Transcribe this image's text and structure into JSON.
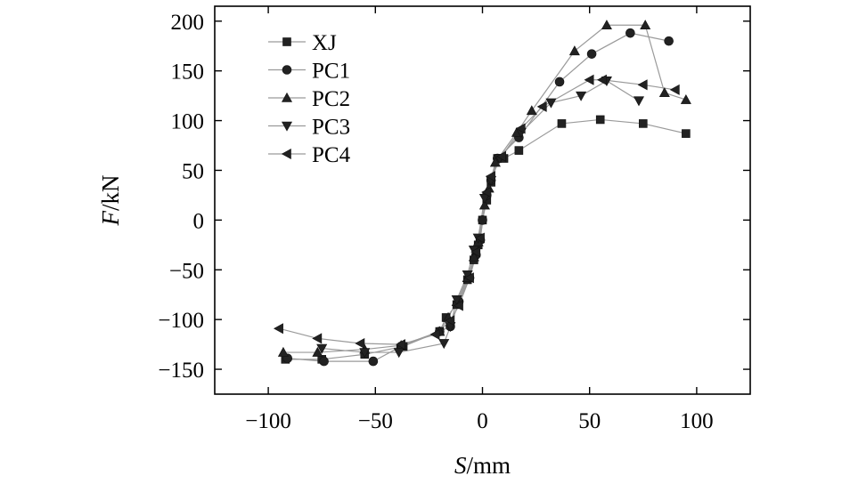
{
  "chart_data": {
    "type": "line",
    "title": "",
    "xlabel_italic": "S",
    "xlabel_unit": "/mm",
    "ylabel_italic": "F",
    "ylabel_unit": "/kN",
    "xlim": [
      -125,
      125
    ],
    "ylim": [
      -175,
      215
    ],
    "xticks": [
      -100,
      -50,
      0,
      50,
      100
    ],
    "yticks": [
      -150,
      -100,
      -50,
      0,
      50,
      100,
      150,
      200
    ],
    "grid": false,
    "legend_position": "top-left",
    "series": [
      {
        "name": "XJ",
        "marker": "square",
        "points": [
          [
            -92,
            -140
          ],
          [
            -75,
            -140
          ],
          [
            -55,
            -135
          ],
          [
            -37,
            -127
          ],
          [
            -20,
            -112
          ],
          [
            -17,
            -98
          ],
          [
            -12,
            -85
          ],
          [
            -7,
            -60
          ],
          [
            -4,
            -40
          ],
          [
            -2,
            -25
          ],
          [
            0,
            0
          ],
          [
            2,
            20
          ],
          [
            4,
            38
          ],
          [
            7,
            62
          ],
          [
            10,
            62
          ],
          [
            17,
            70
          ],
          [
            37,
            97
          ],
          [
            55,
            101
          ],
          [
            75,
            97
          ],
          [
            95,
            87
          ]
        ]
      },
      {
        "name": "PC1",
        "marker": "circle",
        "points": [
          [
            -91,
            -139
          ],
          [
            -74,
            -142
          ],
          [
            -51,
            -142
          ],
          [
            -38,
            -127
          ],
          [
            -20,
            -112
          ],
          [
            -15,
            -107
          ],
          [
            -11,
            -82
          ],
          [
            -6,
            -58
          ],
          [
            -3,
            -35
          ],
          [
            -1,
            -20
          ],
          [
            0,
            0
          ],
          [
            2,
            25
          ],
          [
            4,
            40
          ],
          [
            7,
            62
          ],
          [
            17,
            83
          ],
          [
            36,
            139
          ],
          [
            51,
            167
          ],
          [
            69,
            188
          ],
          [
            87,
            180
          ]
        ]
      },
      {
        "name": "PC2",
        "marker": "triangle-up",
        "points": [
          [
            -93,
            -133
          ],
          [
            -77,
            -133
          ],
          [
            -55,
            -130
          ],
          [
            -38,
            -126
          ],
          [
            -20,
            -112
          ],
          [
            -16,
            -98
          ],
          [
            -12,
            -82
          ],
          [
            -7,
            -58
          ],
          [
            -4,
            -37
          ],
          [
            -2,
            -22
          ],
          [
            1,
            15
          ],
          [
            3,
            32
          ],
          [
            6,
            58
          ],
          [
            16,
            88
          ],
          [
            23,
            110
          ],
          [
            43,
            170
          ],
          [
            58,
            196
          ],
          [
            76,
            196
          ],
          [
            85,
            128
          ],
          [
            95,
            121
          ]
        ]
      },
      {
        "name": "PC3",
        "marker": "triangle-down",
        "points": [
          [
            -75,
            -129
          ],
          [
            -55,
            -133
          ],
          [
            -39,
            -133
          ],
          [
            -18,
            -124
          ],
          [
            -15,
            -107
          ],
          [
            -12,
            -80
          ],
          [
            -7,
            -55
          ],
          [
            -4,
            -30
          ],
          [
            -2,
            -18
          ],
          [
            1,
            22
          ],
          [
            4,
            40
          ],
          [
            8,
            62
          ],
          [
            18,
            88
          ],
          [
            32,
            118
          ],
          [
            46,
            125
          ],
          [
            58,
            140
          ],
          [
            73,
            120
          ]
        ]
      },
      {
        "name": "PC4",
        "marker": "triangle-left",
        "points": [
          [
            -95,
            -109
          ],
          [
            -77,
            -119
          ],
          [
            -57,
            -124
          ],
          [
            -38,
            -125
          ],
          [
            -22,
            -115
          ],
          [
            -15,
            -101
          ],
          [
            -11,
            -86
          ],
          [
            -6,
            -58
          ],
          [
            -3,
            -32
          ],
          [
            -1,
            -18
          ],
          [
            2,
            28
          ],
          [
            4,
            44
          ],
          [
            9,
            64
          ],
          [
            18,
            92
          ],
          [
            28,
            114
          ],
          [
            50,
            141
          ],
          [
            56,
            141
          ],
          [
            75,
            136
          ],
          [
            90,
            131
          ]
        ]
      }
    ]
  }
}
